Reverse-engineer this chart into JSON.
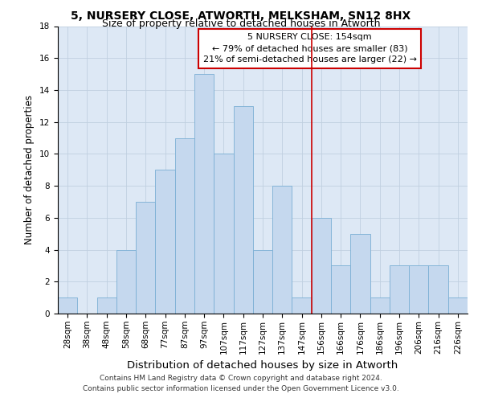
{
  "title": "5, NURSERY CLOSE, ATWORTH, MELKSHAM, SN12 8HX",
  "subtitle": "Size of property relative to detached houses in Atworth",
  "xlabel": "Distribution of detached houses by size in Atworth",
  "ylabel": "Number of detached properties",
  "categories": [
    "28sqm",
    "38sqm",
    "48sqm",
    "58sqm",
    "68sqm",
    "77sqm",
    "87sqm",
    "97sqm",
    "107sqm",
    "117sqm",
    "127sqm",
    "137sqm",
    "147sqm",
    "156sqm",
    "166sqm",
    "176sqm",
    "186sqm",
    "196sqm",
    "206sqm",
    "216sqm",
    "226sqm"
  ],
  "values": [
    1,
    0,
    1,
    4,
    7,
    9,
    11,
    15,
    10,
    13,
    4,
    8,
    1,
    6,
    3,
    5,
    1,
    3,
    3,
    3,
    1
  ],
  "bar_color": "#c5d8ee",
  "bar_edge_color": "#7aafd4",
  "vline_x_index": 13,
  "vline_color": "#cc0000",
  "annotation_text": "5 NURSERY CLOSE: 154sqm\n← 79% of detached houses are smaller (83)\n21% of semi-detached houses are larger (22) →",
  "annotation_box_color": "#cc0000",
  "ylim": [
    0,
    18
  ],
  "yticks": [
    0,
    2,
    4,
    6,
    8,
    10,
    12,
    14,
    16,
    18
  ],
  "grid_color": "#c0cfe0",
  "background_color": "#dde8f5",
  "footer_line1": "Contains HM Land Registry data © Crown copyright and database right 2024.",
  "footer_line2": "Contains public sector information licensed under the Open Government Licence v3.0.",
  "title_fontsize": 10,
  "subtitle_fontsize": 9,
  "xlabel_fontsize": 9.5,
  "ylabel_fontsize": 8.5,
  "tick_fontsize": 7.5,
  "annotation_fontsize": 8,
  "footer_fontsize": 6.5
}
